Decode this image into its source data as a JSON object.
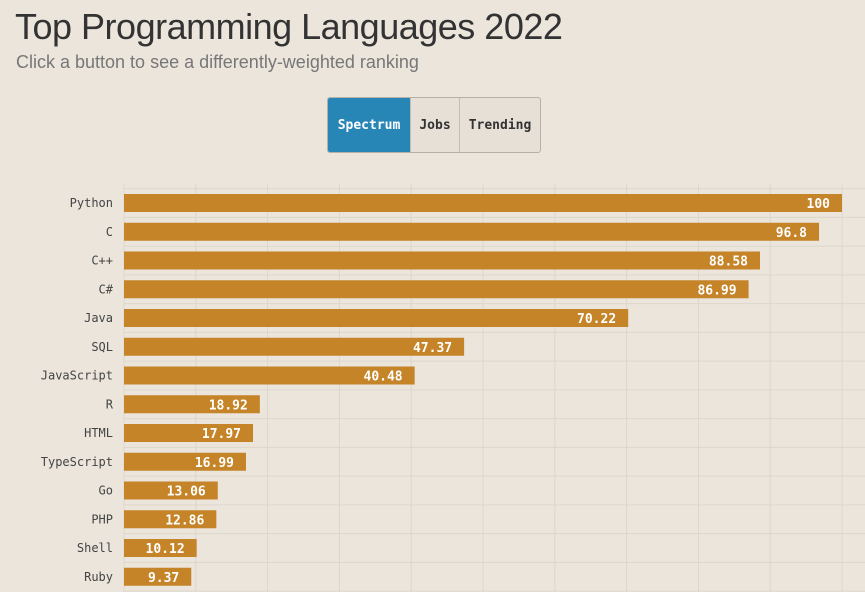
{
  "header": {
    "title": "Top Programming Languages 2022",
    "subtitle": "Click a button to see a differently-weighted ranking"
  },
  "buttons": [
    {
      "label": "Spectrum",
      "active": true
    },
    {
      "label": "Jobs",
      "active": false
    },
    {
      "label": "Trending",
      "active": false
    }
  ],
  "colors": {
    "bar": "#c58428",
    "active_button": "#2786b5",
    "background": "#ebe5dc",
    "grid": "#ddd6cb"
  },
  "chart_data": {
    "type": "bar",
    "orientation": "horizontal",
    "categories": [
      "Python",
      "C",
      "C++",
      "C#",
      "Java",
      "SQL",
      "JavaScript",
      "R",
      "HTML",
      "TypeScript",
      "Go",
      "PHP",
      "Shell",
      "Ruby"
    ],
    "values": [
      100,
      96.8,
      88.58,
      86.99,
      70.22,
      47.37,
      40.48,
      18.92,
      17.97,
      16.99,
      13.06,
      12.86,
      10.12,
      9.37
    ],
    "xlim": [
      0,
      100
    ],
    "grid": true
  }
}
